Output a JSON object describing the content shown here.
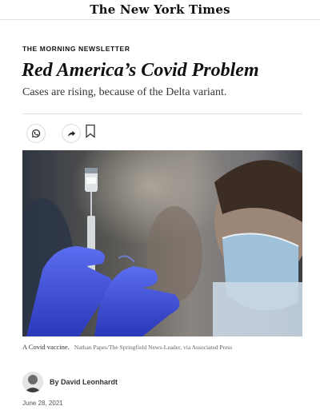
{
  "masthead": {
    "logo_text": "The New York Times"
  },
  "article": {
    "kicker": "THE MORNING NEWSLETTER",
    "headline": "Red America’s Covid Problem",
    "summary": "Cases are rising, because of the Delta variant.",
    "share": {
      "whatsapp_icon": "whatsapp-icon",
      "share_icon": "share-arrow-icon",
      "save_icon": "bookmark-icon"
    },
    "photo": {
      "caption": "A Covid vaccine.",
      "credit": "Nathan Papes/The Springfield News-Leader, via Associated Press"
    },
    "byline": "By David Leonhardt",
    "date": "June 28, 2021"
  },
  "colors": {
    "glove": "#3a4fd6",
    "background": "#ffffff",
    "text": "#121212"
  }
}
